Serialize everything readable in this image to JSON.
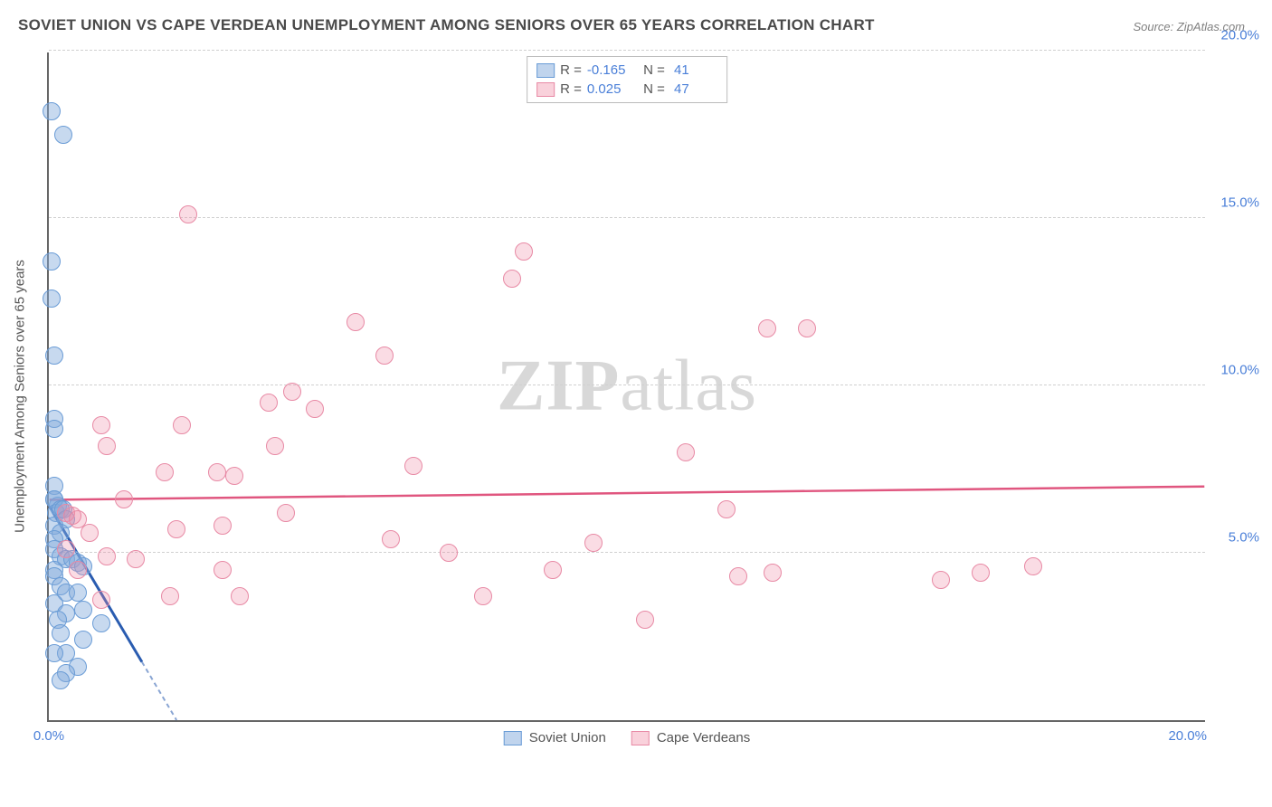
{
  "title": "SOVIET UNION VS CAPE VERDEAN UNEMPLOYMENT AMONG SENIORS OVER 65 YEARS CORRELATION CHART",
  "source": "Source: ZipAtlas.com",
  "watermark_a": "ZIP",
  "watermark_b": "atlas",
  "chart": {
    "type": "scatter",
    "ylabel": "Unemployment Among Seniors over 65 years",
    "xlim": [
      0,
      20
    ],
    "ylim": [
      0,
      20
    ],
    "xticks": [
      {
        "v": 0,
        "l": "0.0%"
      },
      {
        "v": 20,
        "l": "20.0%"
      }
    ],
    "yticks": [
      {
        "v": 5,
        "l": "5.0%"
      },
      {
        "v": 10,
        "l": "10.0%"
      },
      {
        "v": 15,
        "l": "15.0%"
      },
      {
        "v": 20,
        "l": "20.0%"
      }
    ],
    "grid_color": "#d0d0d0",
    "axis_color": "#666666",
    "background": "#ffffff",
    "marker_radius": 10,
    "series": [
      {
        "name": "Soviet Union",
        "cls": "s1",
        "fill": "rgba(130,170,220,0.45)",
        "stroke": "#6a9cd6",
        "R": "-0.165",
        "N": "41",
        "trend": {
          "x1": 0,
          "y1": 6.4,
          "x2": 2.2,
          "y2": 0,
          "color": "#2a5cb0",
          "dash_after_x": 1.6
        },
        "points": [
          [
            0.05,
            18.2
          ],
          [
            0.25,
            17.5
          ],
          [
            0.05,
            13.7
          ],
          [
            0.05,
            12.6
          ],
          [
            0.1,
            10.9
          ],
          [
            0.1,
            9.0
          ],
          [
            0.1,
            8.7
          ],
          [
            0.1,
            7.0
          ],
          [
            0.1,
            6.6
          ],
          [
            0.15,
            6.4
          ],
          [
            0.1,
            6.6
          ],
          [
            0.12,
            6.2
          ],
          [
            0.2,
            6.3
          ],
          [
            0.25,
            6.3
          ],
          [
            0.3,
            6.0
          ],
          [
            0.1,
            5.8
          ],
          [
            0.2,
            5.6
          ],
          [
            0.1,
            5.4
          ],
          [
            0.1,
            5.1
          ],
          [
            0.2,
            4.9
          ],
          [
            0.3,
            4.8
          ],
          [
            0.4,
            4.8
          ],
          [
            0.5,
            4.7
          ],
          [
            0.6,
            4.6
          ],
          [
            0.1,
            4.5
          ],
          [
            0.1,
            4.3
          ],
          [
            0.2,
            4.0
          ],
          [
            0.3,
            3.8
          ],
          [
            0.5,
            3.8
          ],
          [
            0.1,
            3.5
          ],
          [
            0.6,
            3.3
          ],
          [
            0.3,
            3.2
          ],
          [
            0.15,
            3.0
          ],
          [
            0.9,
            2.9
          ],
          [
            0.2,
            2.6
          ],
          [
            0.6,
            2.4
          ],
          [
            0.3,
            2.0
          ],
          [
            0.1,
            2.0
          ],
          [
            0.5,
            1.6
          ],
          [
            0.3,
            1.4
          ],
          [
            0.2,
            1.2
          ]
        ]
      },
      {
        "name": "Cape Verdeans",
        "cls": "s2",
        "fill": "rgba(240,140,165,0.30)",
        "stroke": "#e88aa5",
        "R": "0.025",
        "N": "47",
        "trend": {
          "x1": 0,
          "y1": 6.6,
          "x2": 20,
          "y2": 7.0,
          "color": "#e0567f"
        },
        "points": [
          [
            2.4,
            15.1
          ],
          [
            8.2,
            14.0
          ],
          [
            8.0,
            13.2
          ],
          [
            12.4,
            11.7
          ],
          [
            13.1,
            11.7
          ],
          [
            5.3,
            11.9
          ],
          [
            5.8,
            10.9
          ],
          [
            4.2,
            9.8
          ],
          [
            3.8,
            9.5
          ],
          [
            4.6,
            9.3
          ],
          [
            0.9,
            8.8
          ],
          [
            2.3,
            8.8
          ],
          [
            1.0,
            8.2
          ],
          [
            3.9,
            8.2
          ],
          [
            11.0,
            8.0
          ],
          [
            2.0,
            7.4
          ],
          [
            2.9,
            7.4
          ],
          [
            3.2,
            7.3
          ],
          [
            6.3,
            7.6
          ],
          [
            0.3,
            6.2
          ],
          [
            0.4,
            6.1
          ],
          [
            0.5,
            6.0
          ],
          [
            1.3,
            6.6
          ],
          [
            4.1,
            6.2
          ],
          [
            11.7,
            6.3
          ],
          [
            0.7,
            5.6
          ],
          [
            2.2,
            5.7
          ],
          [
            3.0,
            5.8
          ],
          [
            5.9,
            5.4
          ],
          [
            9.4,
            5.3
          ],
          [
            0.3,
            5.1
          ],
          [
            1.0,
            4.9
          ],
          [
            1.5,
            4.8
          ],
          [
            6.9,
            5.0
          ],
          [
            0.5,
            4.5
          ],
          [
            3.0,
            4.5
          ],
          [
            8.7,
            4.5
          ],
          [
            17.0,
            4.6
          ],
          [
            16.1,
            4.4
          ],
          [
            15.4,
            4.2
          ],
          [
            11.9,
            4.3
          ],
          [
            0.9,
            3.6
          ],
          [
            2.1,
            3.7
          ],
          [
            3.3,
            3.7
          ],
          [
            7.5,
            3.7
          ],
          [
            10.3,
            3.0
          ],
          [
            12.5,
            4.4
          ]
        ]
      }
    ]
  },
  "legend_labels": {
    "r": "R =",
    "n": "N ="
  }
}
